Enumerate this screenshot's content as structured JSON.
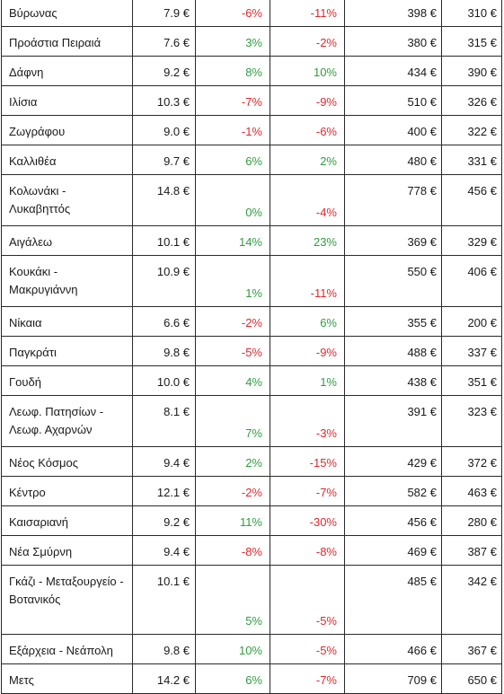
{
  "rows": [
    {
      "area": "Βύρωνας",
      "price": "7.9 €",
      "ch1": "-6%",
      "ch2": "-11%",
      "v1": "398 €",
      "v2": "310 €"
    },
    {
      "area": "Προάστια Πειραιά",
      "price": "7.6 €",
      "ch1": "3%",
      "ch2": "-2%",
      "v1": "380 €",
      "v2": "315 €"
    },
    {
      "area": "Δάφνη",
      "price": "9.2 €",
      "ch1": "8%",
      "ch2": "10%",
      "v1": "434 €",
      "v2": "390 €"
    },
    {
      "area": "Ιλίσια",
      "price": "10.3 €",
      "ch1": "-7%",
      "ch2": "-9%",
      "v1": "510 €",
      "v2": "326 €"
    },
    {
      "area": "Ζωγράφου",
      "price": "9.0 €",
      "ch1": "-1%",
      "ch2": "-6%",
      "v1": "400 €",
      "v2": "322 €"
    },
    {
      "area": "Καλλιθέα",
      "price": "9.7 €",
      "ch1": "6%",
      "ch2": "2%",
      "v1": "480 €",
      "v2": "331 €"
    },
    {
      "area": "Κολωνάκι - Λυκαβηττός",
      "price": "14.8 €",
      "ch1": "0%",
      "ch2": "-4%",
      "v1": "778 €",
      "v2": "456 €"
    },
    {
      "area": "Αιγάλεω",
      "price": "10.1 €",
      "ch1": "14%",
      "ch2": "23%",
      "v1": "369 €",
      "v2": "329 €"
    },
    {
      "area": "Κουκάκι - Μακρυγιάννη",
      "price": "10.9 €",
      "ch1": "1%",
      "ch2": "-11%",
      "v1": "550 €",
      "v2": "406 €"
    },
    {
      "area": "Νίκαια",
      "price": "6.6 €",
      "ch1": "-2%",
      "ch2": "6%",
      "v1": "355 €",
      "v2": "200 €"
    },
    {
      "area": "Παγκράτι",
      "price": "9.8 €",
      "ch1": "-5%",
      "ch2": "-9%",
      "v1": "488 €",
      "v2": "337 €"
    },
    {
      "area": "Γουδή",
      "price": "10.0 €",
      "ch1": "4%",
      "ch2": "1%",
      "v1": "438 €",
      "v2": "351 €"
    },
    {
      "area": "Λεωφ. Πατησίων - Λεωφ. Αχαρνών",
      "price": "8.1 €",
      "ch1": "7%",
      "ch2": "-3%",
      "v1": "391 €",
      "v2": "323 €"
    },
    {
      "area": "Νέος Κόσμος",
      "price": "9.4 €",
      "ch1": "2%",
      "ch2": "-15%",
      "v1": "429 €",
      "v2": "372 €"
    },
    {
      "area": "Κέντρο",
      "price": "12.1 €",
      "ch1": "-2%",
      "ch2": "-7%",
      "v1": "582 €",
      "v2": "463 €"
    },
    {
      "area": "Καισαριανή",
      "price": "9.2 €",
      "ch1": "11%",
      "ch2": "-30%",
      "v1": "456 €",
      "v2": "280 €"
    },
    {
      "area": "Νέα Σμύρνη",
      "price": "9.4 €",
      "ch1": "-8%",
      "ch2": "-8%",
      "v1": "469 €",
      "v2": "387 €"
    },
    {
      "area": "Γκάζι - Μεταξουργείο - Βοτανικός",
      "price": "10.1 €",
      "ch1": "5%",
      "ch2": "-5%",
      "v1": "485 €",
      "v2": "342 €"
    },
    {
      "area": "Εξάρχεια - Νεάπολη",
      "price": "9.8 €",
      "ch1": "10%",
      "ch2": "-5%",
      "v1": "466 €",
      "v2": "367 €"
    },
    {
      "area": "Μετς",
      "price": "14.2 €",
      "ch1": "6%",
      "ch2": "-7%",
      "v1": "709 €",
      "v2": "650 €"
    }
  ],
  "colors": {
    "positive": "#2e9e3e",
    "negative": "#e0282e"
  }
}
